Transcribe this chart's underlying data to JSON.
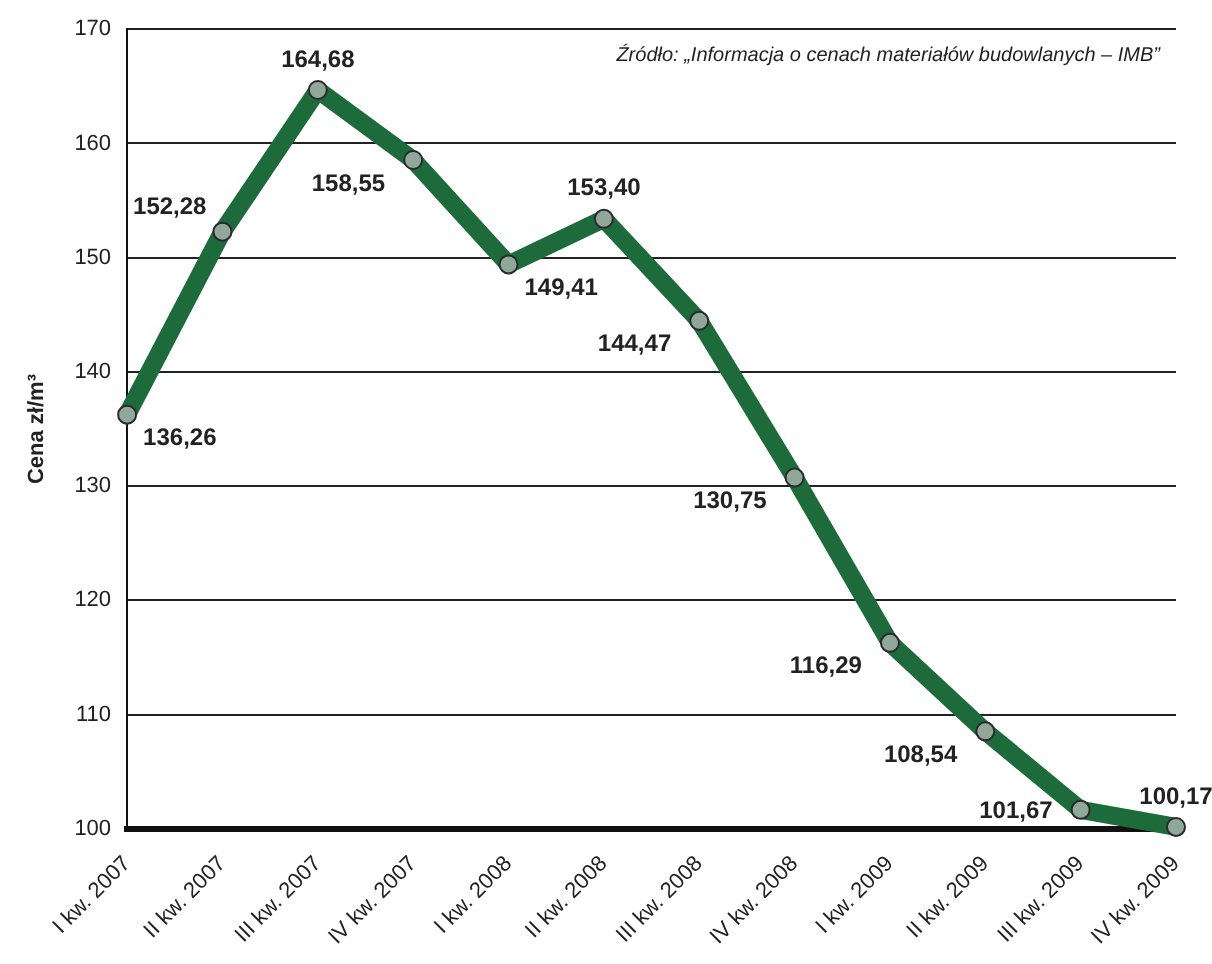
{
  "chart_data": {
    "type": "line",
    "ylabel": "Cena zł/m³",
    "categories": [
      "I kw. 2007",
      "II kw. 2007",
      "III kw. 2007",
      "IV kw. 2007",
      "I kw. 2008",
      "II kw. 2008",
      "III kw. 2008",
      "IV kw. 2008",
      "I kw. 2009",
      "II kw. 2009",
      "III kw. 2009",
      "IV kw. 2009"
    ],
    "series": [
      {
        "color": "#1d6b3b",
        "values": [
          136.26,
          152.28,
          164.68,
          158.55,
          149.41,
          153.4,
          144.47,
          130.75,
          116.29,
          108.54,
          101.67,
          100.17
        ],
        "value_labels": [
          "136,26",
          "152,28",
          "164,68",
          "158,55",
          "149,41",
          "153,40",
          "144,47",
          "130,75",
          "116,29",
          "108,54",
          "101,67",
          "100,17"
        ]
      }
    ],
    "ylim": [
      100,
      170
    ],
    "yticks": [
      100,
      110,
      120,
      130,
      140,
      150,
      160,
      170
    ],
    "grid": "y",
    "legend": false,
    "marker": "circle",
    "line_style": "solid",
    "annotations": [
      "Źródło: „Informacja o cenach materiałów budowlanych – IMB”"
    ]
  }
}
